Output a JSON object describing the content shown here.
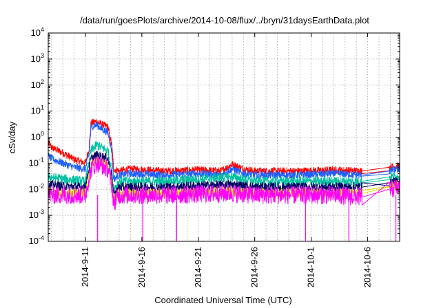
{
  "chart_data": {
    "type": "line",
    "title": "/data/run/goesPlots/archive/2014-10-08/flux/../bryn/31daysEarthData.plot",
    "xlabel": "Coordinated Universal Time (UTC)",
    "ylabel": "cSv/day",
    "yscale": "log",
    "ylim": [
      0.0001,
      10000
    ],
    "xlim": [
      "2014-09-07T17:00",
      "2014-10-08T20:00"
    ],
    "y_ticks": [
      {
        "value": 0.0001,
        "base": "10",
        "exp": "-4"
      },
      {
        "value": 0.001,
        "base": "10",
        "exp": "-3"
      },
      {
        "value": 0.01,
        "base": "10",
        "exp": "-2"
      },
      {
        "value": 0.1,
        "base": "10",
        "exp": "-1"
      },
      {
        "value": 1,
        "base": "10",
        "exp": "0"
      },
      {
        "value": 10,
        "base": "10",
        "exp": "1"
      },
      {
        "value": 100,
        "base": "10",
        "exp": "2"
      },
      {
        "value": 1000,
        "base": "10",
        "exp": "3"
      },
      {
        "value": 10000,
        "base": "10",
        "exp": "4"
      }
    ],
    "x_ticks": [
      {
        "date": "2014-09-11",
        "label": "2014-9-11"
      },
      {
        "date": "2014-09-16",
        "label": "2014-9-16"
      },
      {
        "date": "2014-09-21",
        "label": "2014-9-21"
      },
      {
        "date": "2014-09-26",
        "label": "2014-9-26"
      },
      {
        "date": "2014-10-01",
        "label": "2014-10-1"
      },
      {
        "date": "2014-10-06",
        "label": "2014-10-6"
      }
    ],
    "x_minor_grid_step_days": 1,
    "grid": true,
    "legend": "none",
    "data_gap": [
      "2014-10-05T12:00",
      "2014-10-07T22:00"
    ],
    "series": [
      {
        "color": "#ff0000",
        "x": [
          "2014-09-07T17:00",
          "2014-09-08",
          "2014-09-09",
          "2014-09-10",
          "2014-09-11",
          "2014-09-11T08:00",
          "2014-09-11T12:00",
          "2014-09-12",
          "2014-09-12T12:00",
          "2014-09-13",
          "2014-09-13T08:00",
          "2014-09-13T12:00",
          "2014-09-14",
          "2014-09-15",
          "2014-09-18",
          "2014-09-21",
          "2014-09-23",
          "2014-09-24",
          "2014-09-25",
          "2014-09-26",
          "2014-09-30",
          "2014-10-03",
          "2014-10-05T12:00",
          "2014-10-07T22:00",
          "2014-10-08T20:00"
        ],
        "y": [
          0.6,
          0.4,
          0.25,
          0.14,
          0.1,
          0.4,
          3.5,
          4,
          3,
          2.5,
          0.5,
          0.06,
          0.05,
          0.06,
          0.05,
          0.055,
          0.05,
          0.09,
          0.06,
          0.05,
          0.05,
          0.055,
          0.05,
          0.07,
          0.08
        ]
      },
      {
        "color": "#1e5fff",
        "x": [
          "2014-09-07T17:00",
          "2014-09-08",
          "2014-09-09",
          "2014-09-10",
          "2014-09-11",
          "2014-09-11T08:00",
          "2014-09-11T12:00",
          "2014-09-12",
          "2014-09-12T12:00",
          "2014-09-13",
          "2014-09-13T08:00",
          "2014-09-13T12:00",
          "2014-09-14",
          "2014-09-15",
          "2014-09-18",
          "2014-09-21",
          "2014-09-23",
          "2014-09-24",
          "2014-09-25",
          "2014-09-26",
          "2014-09-30",
          "2014-10-03",
          "2014-10-05T12:00",
          "2014-10-07T22:00",
          "2014-10-08T20:00"
        ],
        "y": [
          0.2,
          0.15,
          0.1,
          0.07,
          0.06,
          0.25,
          2.5,
          3,
          2,
          1.5,
          0.3,
          0.025,
          0.035,
          0.04,
          0.035,
          0.04,
          0.035,
          0.06,
          0.04,
          0.035,
          0.035,
          0.04,
          0.035,
          0.05,
          0.06
        ]
      },
      {
        "color": "#00c0a0",
        "x": [
          "2014-09-07T17:00",
          "2014-09-09",
          "2014-09-11",
          "2014-09-11T12:00",
          "2014-09-12",
          "2014-09-13",
          "2014-09-13T08:00",
          "2014-09-13T12:00",
          "2014-09-14",
          "2014-09-18",
          "2014-09-24",
          "2014-09-26",
          "2014-10-03",
          "2014-10-05T12:00",
          "2014-10-07T22:00",
          "2014-10-08T20:00"
        ],
        "y": [
          0.03,
          0.025,
          0.02,
          0.3,
          0.5,
          0.3,
          0.05,
          0.01,
          0.02,
          0.02,
          0.03,
          0.02,
          0.02,
          0.02,
          0.03,
          0.03
        ]
      },
      {
        "color": "#000060",
        "x": [
          "2014-09-07T17:00",
          "2014-09-09",
          "2014-09-11",
          "2014-09-11T12:00",
          "2014-09-12",
          "2014-09-13",
          "2014-09-13T08:00",
          "2014-09-13T12:00",
          "2014-09-14",
          "2014-09-18",
          "2014-09-24",
          "2014-09-26",
          "2014-10-03",
          "2014-10-05T12:00",
          "2014-10-07T22:00",
          "2014-10-08T20:00"
        ],
        "y": [
          0.015,
          0.013,
          0.012,
          0.15,
          0.2,
          0.15,
          0.03,
          0.006,
          0.012,
          0.012,
          0.015,
          0.012,
          0.012,
          0.012,
          0.018,
          0.02
        ]
      },
      {
        "color": "#e0e000",
        "x": [
          "2014-09-07T17:00",
          "2014-09-09",
          "2014-09-11",
          "2014-09-11T12:00",
          "2014-09-12",
          "2014-09-13",
          "2014-09-13T08:00",
          "2014-09-13T12:00",
          "2014-09-14",
          "2014-09-18",
          "2014-09-24",
          "2014-09-26",
          "2014-10-03",
          "2014-10-05T12:00",
          "2014-10-07T22:00",
          "2014-10-08T20:00"
        ],
        "y": [
          0.008,
          0.007,
          0.007,
          0.08,
          0.12,
          0.08,
          0.02,
          0.004,
          0.007,
          0.007,
          0.008,
          0.007,
          0.007,
          0.007,
          0.012,
          0.015
        ]
      },
      {
        "color": "#ff00ff",
        "x": [
          "2014-09-07T17:00",
          "2014-09-09",
          "2014-09-11",
          "2014-09-11T12:00",
          "2014-09-12",
          "2014-09-13",
          "2014-09-13T08:00",
          "2014-09-13T12:00",
          "2014-09-14",
          "2014-09-18",
          "2014-09-24",
          "2014-09-26",
          "2014-10-03",
          "2014-10-05T12:00",
          "2014-10-07T22:00",
          "2014-10-08T20:00"
        ],
        "y": [
          0.006,
          0.006,
          0.006,
          0.06,
          0.1,
          0.06,
          0.015,
          0.003,
          0.006,
          0.006,
          0.007,
          0.006,
          0.006,
          0.005,
          0.01,
          0.012
        ]
      }
    ]
  }
}
